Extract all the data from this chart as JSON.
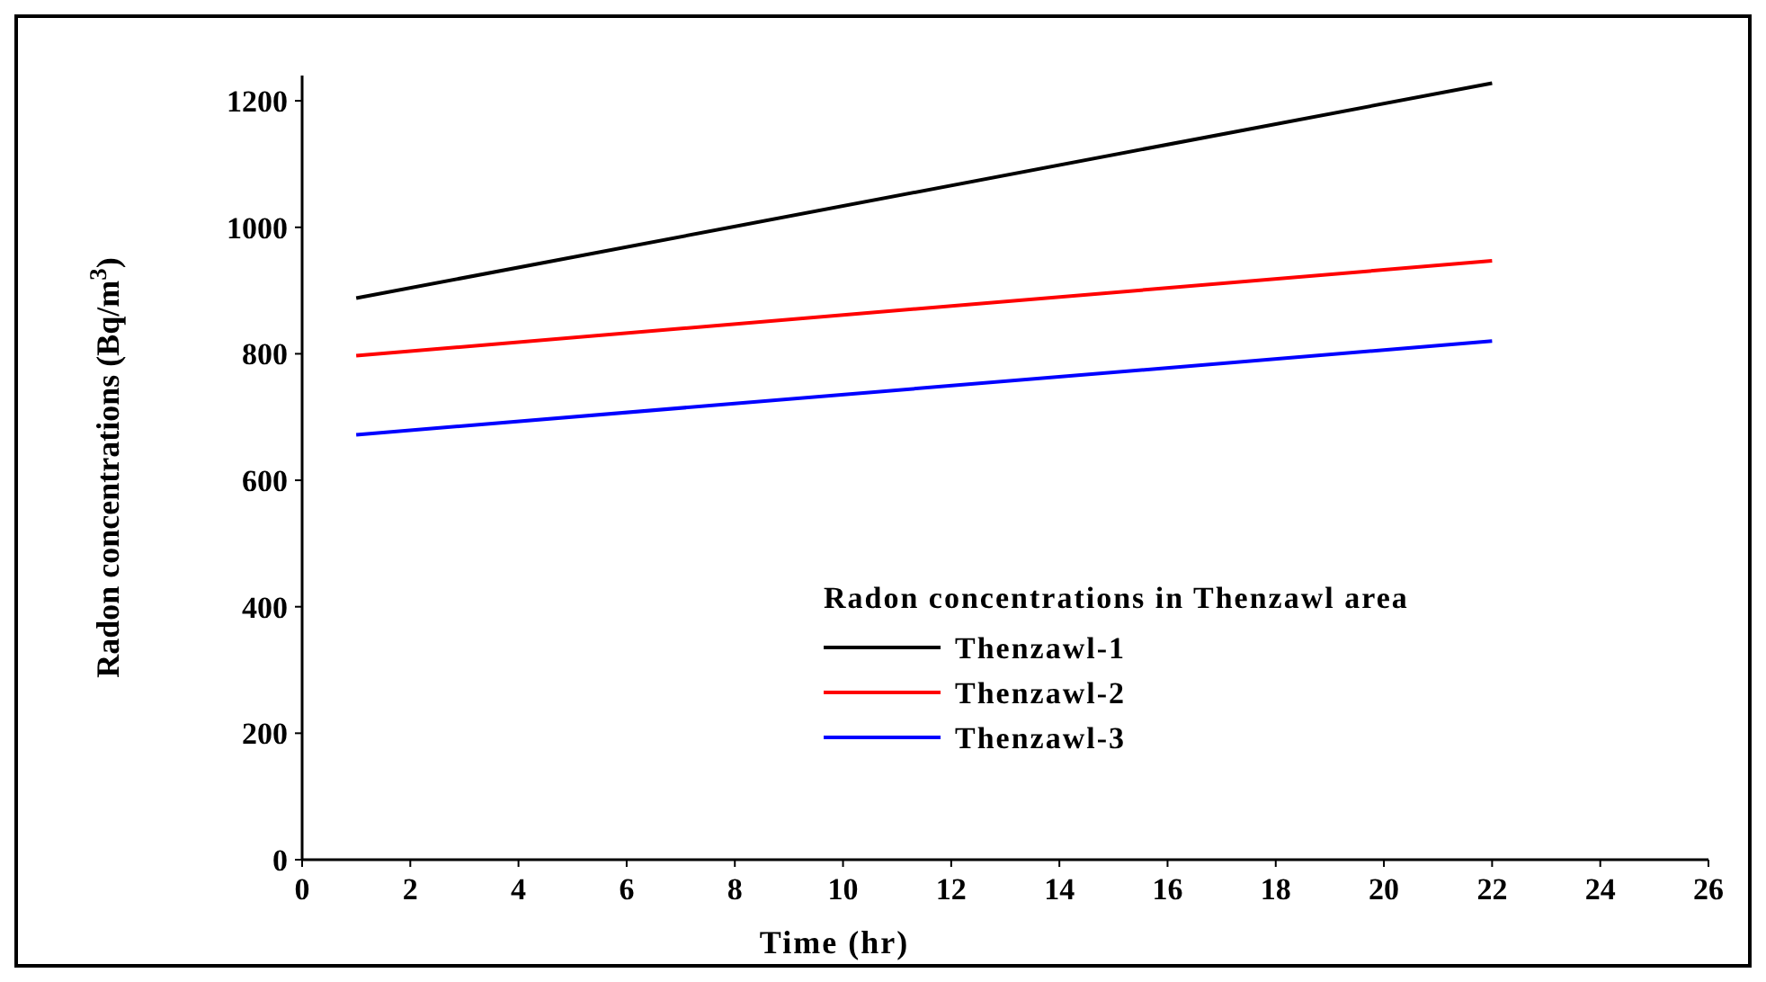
{
  "chart_data": {
    "type": "line",
    "xlabel": "Time (hr)",
    "ylabel": "Radon concentrations (Bq/m$^{3}$)",
    "legend_title": "Radon concentrations in Thenzawl area",
    "legend": "bottom right",
    "xlim": [
      0,
      26
    ],
    "xticks": [
      0,
      2,
      4,
      6,
      8,
      10,
      12,
      14,
      16,
      18,
      20,
      22,
      24,
      26
    ],
    "ylim": [
      0,
      1240
    ],
    "yticks": [
      0,
      200,
      400,
      600,
      800,
      1000,
      1200
    ],
    "grid": false,
    "marker": "none",
    "line_style": "solid",
    "x": [
      1,
      22
    ],
    "series": [
      {
        "name": "Thenzawl-1",
        "color": "#000000",
        "values": [
          888,
          1228
        ]
      },
      {
        "name": "Thenzawl-2",
        "color": "#ff0000",
        "values": [
          797,
          947
        ]
      },
      {
        "name": "Thenzawl-3",
        "color": "#0000ff",
        "values": [
          672,
          820
        ]
      }
    ]
  }
}
